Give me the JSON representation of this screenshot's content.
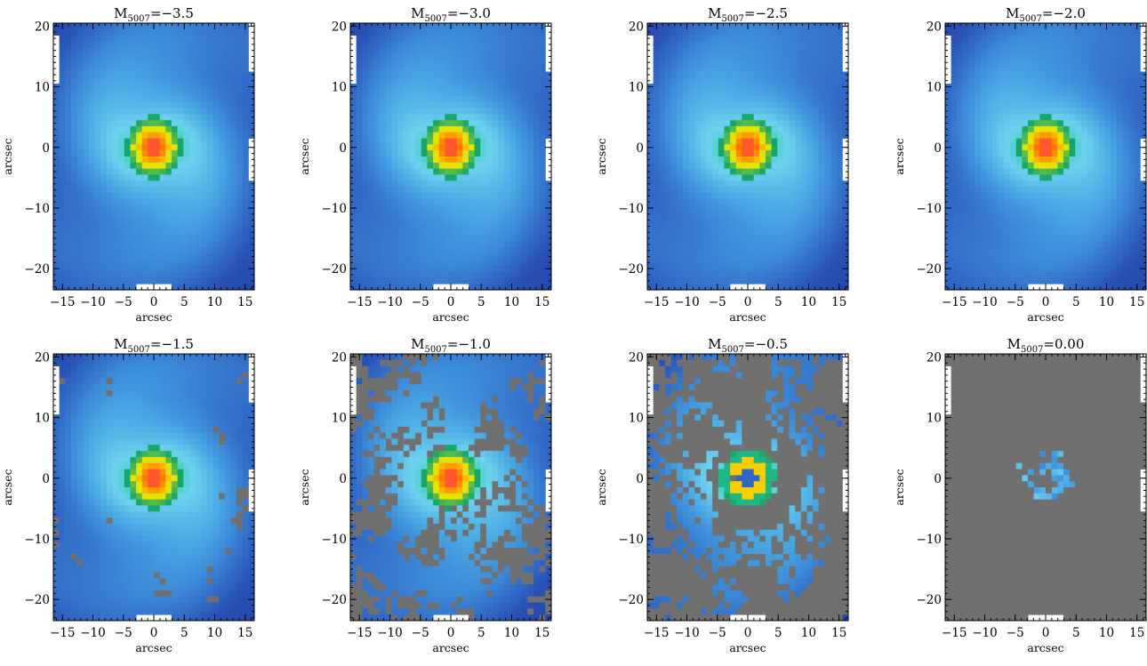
{
  "chart_data": [
    {
      "type": "heatmap",
      "title": {
        "main": "M",
        "sub": "5007",
        "value": "=−3.5"
      },
      "xlabel": "arcsec",
      "ylabel": "arcsec",
      "xlim": [
        -16.5,
        16.5
      ],
      "ylim": [
        -23.5,
        20.5
      ],
      "xticks": [
        "−15",
        "−10",
        "−5",
        "0",
        "5",
        "10",
        "15"
      ],
      "yticks": [
        "−20",
        "−10",
        "0",
        "10",
        "20"
      ],
      "masked_fraction": 0.0
    },
    {
      "type": "heatmap",
      "title": {
        "main": "M",
        "sub": "5007",
        "value": "=−3.0"
      },
      "xlabel": "arcsec",
      "ylabel": "arcsec",
      "xlim": [
        -16.5,
        16.5
      ],
      "ylim": [
        -23.5,
        20.5
      ],
      "xticks": [
        "−15",
        "−10",
        "−5",
        "0",
        "5",
        "10",
        "15"
      ],
      "yticks": [
        "−20",
        "−10",
        "0",
        "10",
        "20"
      ],
      "masked_fraction": 0.0
    },
    {
      "type": "heatmap",
      "title": {
        "main": "M",
        "sub": "5007",
        "value": "=−2.5"
      },
      "xlabel": "arcsec",
      "ylabel": "arcsec",
      "xlim": [
        -16.5,
        16.5
      ],
      "ylim": [
        -23.5,
        20.5
      ],
      "xticks": [
        "−15",
        "−10",
        "−5",
        "0",
        "5",
        "10",
        "15"
      ],
      "yticks": [
        "−20",
        "−10",
        "0",
        "10",
        "20"
      ],
      "masked_fraction": 0.02
    },
    {
      "type": "heatmap",
      "title": {
        "main": "M",
        "sub": "5007",
        "value": "=−2.0"
      },
      "xlabel": "arcsec",
      "ylabel": "arcsec",
      "xlim": [
        -16.5,
        16.5
      ],
      "ylim": [
        -23.5,
        20.5
      ],
      "xticks": [
        "−15",
        "−10",
        "−5",
        "0",
        "5",
        "10",
        "15"
      ],
      "yticks": [
        "−20",
        "−10",
        "0",
        "10",
        "20"
      ],
      "masked_fraction": 0.06
    },
    {
      "type": "heatmap",
      "title": {
        "main": "M",
        "sub": "5007",
        "value": "=−1.5"
      },
      "xlabel": "arcsec",
      "ylabel": "arcsec",
      "xlim": [
        -16.5,
        16.5
      ],
      "ylim": [
        -23.5,
        20.5
      ],
      "xticks": [
        "−15",
        "−10",
        "−5",
        "0",
        "5",
        "10",
        "15"
      ],
      "yticks": [
        "−20",
        "−10",
        "0",
        "10",
        "20"
      ],
      "masked_fraction": 0.2
    },
    {
      "type": "heatmap",
      "title": {
        "main": "M",
        "sub": "5007",
        "value": "=−1.0"
      },
      "xlabel": "arcsec",
      "ylabel": "arcsec",
      "xlim": [
        -16.5,
        16.5
      ],
      "ylim": [
        -23.5,
        20.5
      ],
      "xticks": [
        "−15",
        "−10",
        "−5",
        "0",
        "5",
        "10",
        "15"
      ],
      "yticks": [
        "−20",
        "−10",
        "0",
        "10",
        "20"
      ],
      "masked_fraction": 0.4
    },
    {
      "type": "heatmap",
      "title": {
        "main": "M",
        "sub": "5007",
        "value": "=−0.5"
      },
      "xlabel": "arcsec",
      "ylabel": "arcsec",
      "xlim": [
        -16.5,
        16.5
      ],
      "ylim": [
        -23.5,
        20.5
      ],
      "xticks": [
        "−15",
        "−10",
        "−5",
        "0",
        "5",
        "10",
        "15"
      ],
      "yticks": [
        "−20",
        "−10",
        "0",
        "10",
        "20"
      ],
      "masked_fraction": 0.6
    },
    {
      "type": "heatmap",
      "title": {
        "main": "M",
        "sub": "5007",
        "value": "=0.00"
      },
      "xlabel": "arcsec",
      "ylabel": "arcsec",
      "xlim": [
        -16.5,
        16.5
      ],
      "ylim": [
        -23.5,
        20.5
      ],
      "xticks": [
        "−15",
        "−10",
        "−5",
        "0",
        "5",
        "10",
        "15"
      ],
      "yticks": [
        "−20",
        "−10",
        "0",
        "10",
        "20"
      ],
      "masked_fraction": 0.9
    }
  ],
  "colors": {
    "masked": "#707070",
    "colormap": [
      "#0d1a66",
      "#1f36a0",
      "#2d5ec0",
      "#3c8ad8",
      "#4fb0e6",
      "#6fd2ef",
      "#2fd0a8",
      "#14a66a",
      "#f5e800",
      "#ffa000",
      "#ff3a00",
      "#ffb8c8"
    ]
  }
}
